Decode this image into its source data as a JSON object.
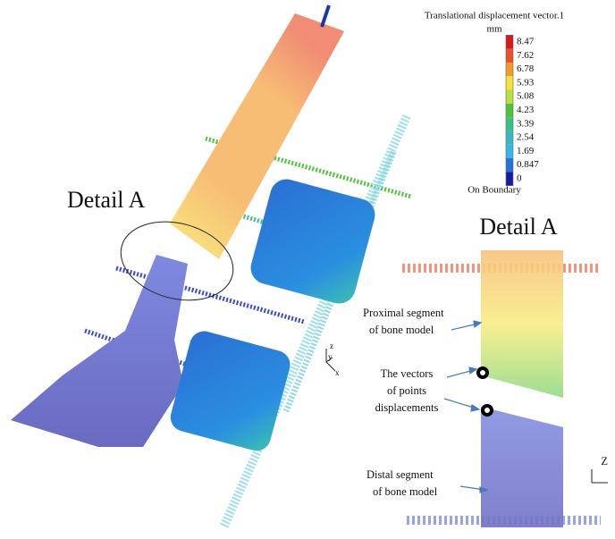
{
  "legend": {
    "title": "Translational displacement vector.1",
    "unit": "mm",
    "values": [
      8.47,
      7.62,
      6.78,
      5.93,
      5.08,
      4.23,
      3.39,
      2.54,
      1.69,
      0.847,
      0
    ],
    "colors": [
      "#d7191c",
      "#e8502a",
      "#f39a2b",
      "#f4e23a",
      "#b7e03a",
      "#4fc43a",
      "#3cc08a",
      "#3ab7c5",
      "#38b6e8",
      "#2a6fd4",
      "#1a1aa0"
    ],
    "footer": "On Boundary"
  },
  "detail_label_left": "Detail A",
  "detail_label_right": "Detail A",
  "annotations": [
    {
      "lines": [
        "Proximal segment",
        "of bone model"
      ]
    },
    {
      "lines": [
        "The vectors",
        "of points",
        "displacements"
      ]
    },
    {
      "lines": [
        "Distal segment",
        "of bone model"
      ]
    }
  ],
  "axes_left": [
    "z",
    "y",
    "x"
  ],
  "axes_right": [
    "Z"
  ]
}
